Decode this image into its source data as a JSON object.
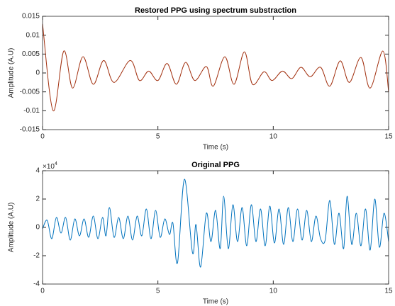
{
  "chart_data": [
    {
      "type": "line",
      "title": "Restored PPG using spectrum substraction",
      "xlabel": "Time (s)",
      "ylabel": "Amplitude (A.U)",
      "xlim": [
        0,
        15
      ],
      "xticks": [
        0,
        5,
        10,
        15
      ],
      "ylim": [
        -0.015,
        0.015
      ],
      "yticks": [
        -0.015,
        -0.01,
        -0.005,
        0,
        0.005,
        0.01,
        0.015
      ],
      "series": [
        {
          "color": "#a2300f",
          "x": [
            0,
            0.46,
            0.92,
            1.3,
            1.75,
            2.2,
            2.65,
            3.1,
            3.8,
            4.2,
            4.6,
            5.0,
            5.4,
            5.8,
            6.2,
            6.6,
            7.1,
            7.4,
            7.9,
            8.3,
            8.75,
            9.1,
            9.6,
            9.95,
            10.4,
            10.8,
            11.2,
            11.6,
            12.05,
            12.45,
            12.9,
            13.3,
            13.8,
            14.2,
            14.75,
            15
          ],
          "values": [
            0.013,
            -0.01,
            0.0058,
            -0.004,
            0.0043,
            -0.003,
            0.0033,
            -0.0025,
            0.0033,
            -0.002,
            0.0005,
            -0.002,
            0.0025,
            -0.003,
            0.0028,
            -0.002,
            0.0017,
            -0.0035,
            0.0043,
            -0.003,
            0.0056,
            -0.003,
            0.0003,
            -0.002,
            0.0005,
            -0.0015,
            0.0015,
            -0.001,
            0.0015,
            -0.0035,
            0.0032,
            -0.0025,
            0.0041,
            -0.004,
            0.0058,
            -0.005
          ]
        }
      ]
    },
    {
      "type": "line",
      "title": "Original PPG",
      "xlabel": "Time (s)",
      "ylabel": "Amplitude (A.U)",
      "y_multiplier": {
        "base": "×10",
        "exponent": "4"
      },
      "xlim": [
        0,
        15
      ],
      "xticks": [
        0,
        5,
        10,
        15
      ],
      "ylim": [
        -4,
        4
      ],
      "yticks": [
        -4,
        -2,
        0,
        2,
        4
      ],
      "series": [
        {
          "color": "#0072bd",
          "x": [
            0,
            0.2,
            0.4,
            0.6,
            0.8,
            1.0,
            1.2,
            1.4,
            1.6,
            1.8,
            2.0,
            2.2,
            2.4,
            2.6,
            2.75,
            2.9,
            3.1,
            3.3,
            3.5,
            3.7,
            3.9,
            4.1,
            4.3,
            4.5,
            4.7,
            4.9,
            5.1,
            5.3,
            5.5,
            5.65,
            5.85,
            6.15,
            6.5,
            6.65,
            6.85,
            7.1,
            7.3,
            7.5,
            7.7,
            7.85,
            8.05,
            8.25,
            8.45,
            8.65,
            8.85,
            9.05,
            9.25,
            9.45,
            9.65,
            9.85,
            10.05,
            10.25,
            10.45,
            10.65,
            10.85,
            11.05,
            11.25,
            11.45,
            11.65,
            11.85,
            12.05,
            12.25,
            12.45,
            12.65,
            12.85,
            13.05,
            13.2,
            13.4,
            13.6,
            13.8,
            14.0,
            14.2,
            14.4,
            14.6,
            14.8,
            15.0
          ],
          "values": [
            -0.1,
            0.5,
            -0.8,
            0.7,
            -0.4,
            0.7,
            -0.9,
            0.6,
            -0.6,
            0.6,
            -0.7,
            0.8,
            -0.8,
            0.7,
            -0.6,
            1.4,
            -0.7,
            0.7,
            -0.8,
            0.8,
            -0.9,
            0.8,
            -0.6,
            1.3,
            -0.8,
            1.2,
            -0.7,
            0.6,
            -0.5,
            0.3,
            -2.5,
            3.4,
            -1.8,
            0.2,
            -2.8,
            1.0,
            -1.0,
            1.2,
            -1.5,
            2.2,
            -1.5,
            1.6,
            -1.0,
            1.4,
            -1.3,
            1.6,
            -1.0,
            1.3,
            -1.3,
            1.5,
            -1.1,
            1.3,
            -1.2,
            1.4,
            -1.0,
            1.3,
            -0.9,
            1.2,
            -1.0,
            0.8,
            -0.8,
            -0.9,
            1.9,
            -1.2,
            1.0,
            -1.5,
            2.2,
            -1.2,
            1.0,
            -1.3,
            1.3,
            -1.6,
            2.0,
            -1.4,
            1.0,
            -1.0
          ]
        }
      ]
    }
  ]
}
